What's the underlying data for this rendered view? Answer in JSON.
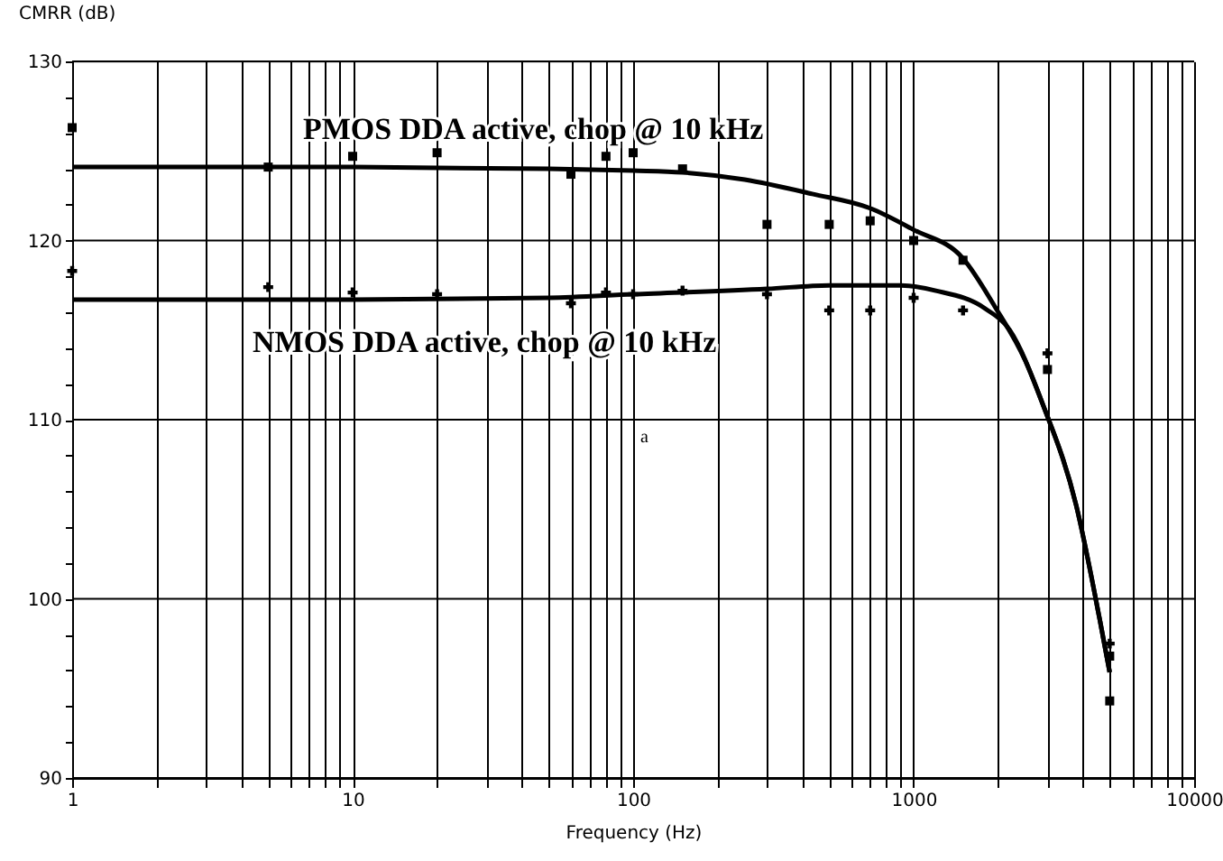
{
  "chart_data": {
    "type": "scatter",
    "xlabel": "Frequency (Hz)",
    "ylabel": "CMRR (dB)",
    "log": "x",
    "grid": true,
    "xlim": [
      1,
      10000
    ],
    "xticks": [
      1,
      {
        "value": 2,
        "label": null
      },
      {
        "value": 3,
        "label": null
      },
      {
        "value": 4,
        "label": null
      },
      {
        "value": 5,
        "label": null
      },
      {
        "value": 6,
        "label": null
      },
      {
        "value": 7,
        "label": null
      },
      {
        "value": 8,
        "label": null
      },
      {
        "value": 9,
        "label": null
      },
      10,
      {
        "value": 20,
        "label": null
      },
      {
        "value": 30,
        "label": null
      },
      {
        "value": 40,
        "label": null
      },
      {
        "value": 50,
        "label": null
      },
      {
        "value": 60,
        "label": null
      },
      {
        "value": 70,
        "label": null
      },
      {
        "value": 80,
        "label": null
      },
      {
        "value": 90,
        "label": null
      },
      100,
      {
        "value": 200,
        "label": null
      },
      {
        "value": 300,
        "label": null
      },
      {
        "value": 400,
        "label": null
      },
      {
        "value": 500,
        "label": null
      },
      {
        "value": 600,
        "label": null
      },
      {
        "value": 700,
        "label": null
      },
      {
        "value": 800,
        "label": null
      },
      {
        "value": 900,
        "label": null
      },
      1000,
      {
        "value": 2000,
        "label": null
      },
      {
        "value": 3000,
        "label": null
      },
      {
        "value": 4000,
        "label": null
      },
      {
        "value": 5000,
        "label": null
      },
      {
        "value": 6000,
        "label": null
      },
      {
        "value": 7000,
        "label": null
      },
      {
        "value": 8000,
        "label": null
      },
      {
        "value": 9000,
        "label": null
      },
      10000
    ],
    "ylim": [
      90,
      130
    ],
    "yticks": [
      90,
      {
        "value": 92,
        "label": null
      },
      {
        "value": 94,
        "label": null
      },
      {
        "value": 96,
        "label": null
      },
      {
        "value": 98,
        "label": null
      },
      100,
      {
        "value": 102,
        "label": null
      },
      {
        "value": 104,
        "label": null
      },
      {
        "value": 106,
        "label": null
      },
      {
        "value": 108,
        "label": null
      },
      110,
      {
        "value": 112,
        "label": null
      },
      {
        "value": 114,
        "label": null
      },
      {
        "value": 116,
        "label": null
      },
      {
        "value": 118,
        "label": null
      },
      120,
      {
        "value": 122,
        "label": null
      },
      {
        "value": 124,
        "label": null
      },
      {
        "value": 126,
        "label": null
      },
      {
        "value": 128,
        "label": null
      },
      130
    ],
    "series": [
      {
        "type": "scatter",
        "marker": "square",
        "color": "#000000",
        "x": [
          1,
          5,
          10,
          20,
          60,
          80,
          100,
          150,
          300,
          500,
          700,
          1000,
          1500,
          3000,
          5000,
          5000
        ],
        "values": [
          126.3,
          124.1,
          124.7,
          124.9,
          123.7,
          124.7,
          124.9,
          124.0,
          120.9,
          120.9,
          121.1,
          120.0,
          118.9,
          112.8,
          96.8,
          94.3
        ]
      },
      {
        "type": "scatter",
        "marker": "cross",
        "color": "#000000",
        "x": [
          1,
          5,
          10,
          20,
          60,
          80,
          100,
          150,
          300,
          500,
          700,
          1000,
          1500,
          3000,
          5000
        ],
        "values": [
          118.3,
          117.4,
          117.1,
          117.0,
          116.5,
          117.1,
          117.0,
          117.2,
          117.0,
          116.1,
          116.1,
          116.8,
          116.1,
          113.7,
          97.5
        ]
      },
      {
        "type": "line",
        "name": "PMOS DDA active, chop @ 10 kHz",
        "marker": "none",
        "color": "#000000",
        "x": [
          1,
          10,
          50,
          100,
          150,
          250,
          435,
          700,
          1000,
          1500,
          1950,
          2500,
          2880,
          3800,
          4600,
          5000
        ],
        "values": [
          124.1,
          124.1,
          124.0,
          123.9,
          123.8,
          123.4,
          122.6,
          121.8,
          120.6,
          119.0,
          116.3,
          113.3,
          110.9,
          105.2,
          98.9,
          95.9
        ]
      },
      {
        "type": "line",
        "name": "NMOS DDA active, chop @ 10 kHz",
        "marker": "none",
        "color": "#000000",
        "x": [
          1,
          10,
          50,
          100,
          300,
          500,
          900,
          1200,
          1800,
          2200,
          2880,
          3800,
          4600,
          5000
        ],
        "values": [
          116.7,
          116.7,
          116.8,
          117.0,
          117.3,
          117.5,
          117.5,
          117.2,
          116.2,
          115.0,
          110.9,
          105.2,
          98.9,
          95.9
        ]
      }
    ],
    "annotations": [
      "a"
    ]
  }
}
